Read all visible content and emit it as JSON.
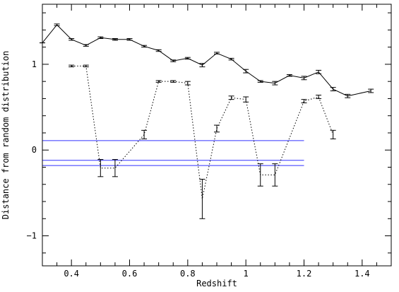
{
  "chart_data": {
    "type": "line",
    "xlabel": "Redshift",
    "ylabel": "Distance from random distribution",
    "xlim": [
      0.3,
      1.5
    ],
    "ylim": [
      -1.35,
      1.7
    ],
    "x_ticks": [
      0.4,
      0.6,
      0.8,
      1.0,
      1.2,
      1.4
    ],
    "x_tick_labels": [
      "0.4",
      "0.6",
      "0.8",
      "1",
      "1.2",
      "1.4"
    ],
    "y_ticks": [
      -1,
      0,
      1
    ],
    "y_tick_labels": [
      "−1",
      "0",
      "1"
    ],
    "grid": false,
    "legend": "none",
    "series": [
      {
        "style": "solid",
        "color": "#000000",
        "x": [
          0.3,
          0.35,
          0.4,
          0.45,
          0.5,
          0.55,
          0.6,
          0.65,
          0.7,
          0.75,
          0.8,
          0.85,
          0.9,
          0.95,
          1.0,
          1.05,
          1.1,
          1.15,
          1.2,
          1.25,
          1.3,
          1.35,
          1.43
        ],
        "y": [
          1.25,
          1.46,
          1.29,
          1.22,
          1.31,
          1.29,
          1.29,
          1.21,
          1.16,
          1.04,
          1.07,
          0.99,
          1.13,
          1.06,
          0.92,
          0.8,
          0.78,
          0.87,
          0.84,
          0.91,
          0.71,
          0.63,
          0.69
        ],
        "err": [
          0.0,
          0.01,
          0.01,
          0.01,
          0.01,
          0.01,
          0.01,
          0.01,
          0.01,
          0.01,
          0.01,
          0.02,
          0.01,
          0.01,
          0.02,
          0.01,
          0.02,
          0.01,
          0.02,
          0.02,
          0.02,
          0.02,
          0.02
        ]
      },
      {
        "style": "dotted",
        "color": "#000000",
        "x": [
          0.4,
          0.45,
          0.5,
          0.55,
          0.65,
          0.7,
          0.75,
          0.8,
          0.85,
          0.9,
          0.95,
          1.0,
          1.05,
          1.1,
          1.2,
          1.25,
          1.3
        ],
        "y": [
          0.98,
          0.98,
          -0.21,
          -0.21,
          0.18,
          0.8,
          0.8,
          0.78,
          -0.57,
          0.25,
          0.61,
          0.59,
          -0.29,
          -0.29,
          0.57,
          0.62,
          0.18
        ],
        "err": [
          0.01,
          0.01,
          0.1,
          0.1,
          0.05,
          0.01,
          0.01,
          0.02,
          0.23,
          0.04,
          0.02,
          0.03,
          0.13,
          0.13,
          0.02,
          0.02,
          0.05
        ]
      }
    ],
    "reference_lines": [
      {
        "y": 0.11,
        "x_range": [
          0.3,
          1.2
        ],
        "color": "#3333ff"
      },
      {
        "y": -0.12,
        "x_range": [
          0.3,
          1.2
        ],
        "color": "#3333ff"
      },
      {
        "y": -0.18,
        "x_range": [
          0.3,
          1.2
        ],
        "color": "#3333ff"
      }
    ]
  }
}
